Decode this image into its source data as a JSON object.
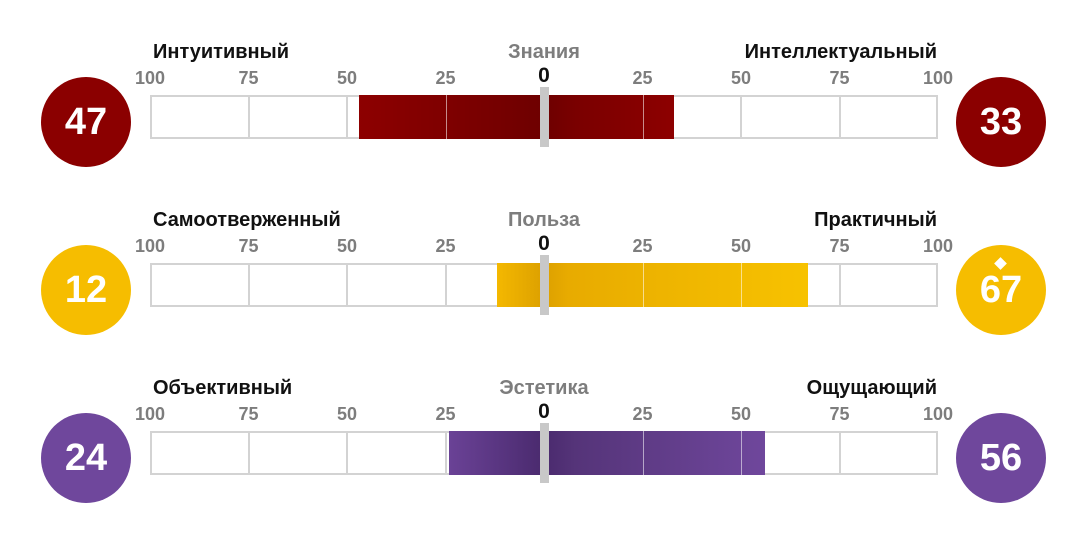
{
  "colors": {
    "dark_red": "#8b0000",
    "yellow": "#f6bd00",
    "purple": "#6f479c",
    "track_border": "#d3d3d3",
    "tick_text": "#7d7d7d"
  },
  "chart_data": {
    "type": "bar",
    "orientation": "horizontal",
    "xlim": [
      -100,
      100
    ],
    "ticks": [
      "100",
      "75",
      "50",
      "25",
      "0",
      "25",
      "50",
      "75",
      "100"
    ],
    "grid": true,
    "rows": [
      {
        "title": "Знания",
        "left_label": "Интуитивный",
        "right_label": "Интеллектуальный",
        "left_value": 47,
        "right_value": 33,
        "left_score": "47",
        "right_score": "33",
        "color": "dark_red",
        "right_marker": ""
      },
      {
        "title": "Польза",
        "left_label": "Самоотверженный",
        "right_label": "Практичный",
        "left_value": 12,
        "right_value": 67,
        "left_score": "12",
        "right_score": "67",
        "color": "yellow",
        "right_marker": "diamond"
      },
      {
        "title": "Эстетика",
        "left_label": "Объективный",
        "right_label": "Ощущающий",
        "left_value": 24,
        "right_value": 56,
        "left_score": "24",
        "right_score": "56",
        "color": "purple",
        "right_marker": ""
      }
    ]
  }
}
